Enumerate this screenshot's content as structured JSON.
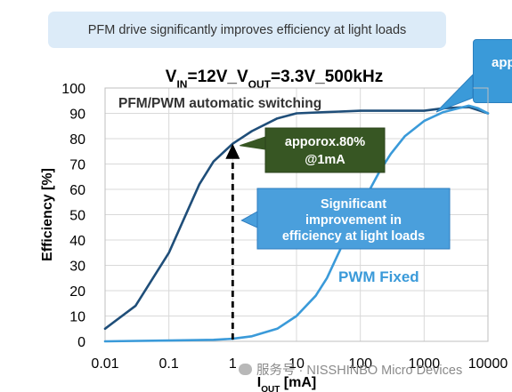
{
  "banner": {
    "text": "PFM drive significantly improves efficiency at light loads"
  },
  "corner_callout": {
    "text": "appro"
  },
  "watermark": {
    "text": "服务号 · NISSHINBO Micro Devices"
  },
  "colors": {
    "dark": "#1f4e79",
    "light": "#3a9ad9",
    "callout_green": "#375623",
    "grid": "#d9d9d9"
  },
  "chart_data": {
    "type": "line",
    "title": {
      "parts": [
        {
          "text": "V",
          "sub": false
        },
        {
          "text": "IN",
          "sub": true
        },
        {
          "text": "=12V_V",
          "sub": false
        },
        {
          "text": "OUT",
          "sub": true
        },
        {
          "text": "=3.3V_500kHz",
          "sub": false
        }
      ]
    },
    "xlabel": {
      "parts": [
        {
          "text": "I",
          "sub": false
        },
        {
          "text": "OUT",
          "sub": true
        },
        {
          "text": " [mA]",
          "sub": false
        }
      ]
    },
    "ylabel": "Efficiency [%]",
    "x_scale": "log",
    "xlim": [
      0.01,
      10000
    ],
    "ylim": [
      0,
      100
    ],
    "x_ticks": [
      {
        "value": 0.01,
        "label": "0.01"
      },
      {
        "value": 0.1,
        "label": "0.1"
      },
      {
        "value": 1,
        "label": "1"
      },
      {
        "value": 10,
        "label": "10"
      },
      {
        "value": 100,
        "label": "100"
      },
      {
        "value": 1000,
        "label": "1000"
      },
      {
        "value": 10000,
        "label": "10000"
      }
    ],
    "y_ticks": [
      {
        "value": 0,
        "label": "0"
      },
      {
        "value": 10,
        "label": "10"
      },
      {
        "value": 20,
        "label": "20"
      },
      {
        "value": 30,
        "label": "30"
      },
      {
        "value": 40,
        "label": "40"
      },
      {
        "value": 50,
        "label": "50"
      },
      {
        "value": 60,
        "label": "60"
      },
      {
        "value": 70,
        "label": "70"
      },
      {
        "value": 80,
        "label": "80"
      },
      {
        "value": 90,
        "label": "90"
      },
      {
        "value": 100,
        "label": "100"
      }
    ],
    "grid": true,
    "series": [
      {
        "name": "PFM/PWM automatic switching",
        "color": "#1f4e79",
        "points": [
          [
            0.01,
            5
          ],
          [
            0.03,
            14
          ],
          [
            0.1,
            35
          ],
          [
            0.2,
            52
          ],
          [
            0.3,
            62
          ],
          [
            0.5,
            71
          ],
          [
            1,
            78
          ],
          [
            2,
            83
          ],
          [
            5,
            88
          ],
          [
            10,
            90
          ],
          [
            30,
            90.5
          ],
          [
            100,
            91
          ],
          [
            300,
            91
          ],
          [
            1000,
            91
          ],
          [
            2000,
            92
          ],
          [
            5000,
            92.5
          ],
          [
            10000,
            90
          ]
        ]
      },
      {
        "name": "PWM Fixed",
        "color": "#3a9ad9",
        "points": [
          [
            0.01,
            0
          ],
          [
            0.1,
            0.3
          ],
          [
            0.5,
            0.6
          ],
          [
            1,
            1
          ],
          [
            2,
            2
          ],
          [
            5,
            5
          ],
          [
            10,
            10
          ],
          [
            20,
            18
          ],
          [
            30,
            25
          ],
          [
            50,
            37
          ],
          [
            100,
            53
          ],
          [
            200,
            67
          ],
          [
            300,
            74
          ],
          [
            500,
            81
          ],
          [
            1000,
            87
          ],
          [
            2000,
            90.5
          ],
          [
            5000,
            93
          ],
          [
            7000,
            92
          ],
          [
            10000,
            90
          ]
        ]
      }
    ],
    "annotations": [
      {
        "id": "approx80",
        "lines": [
          "apporox.80%",
          "@1mA"
        ],
        "x": 1,
        "y": 78
      },
      {
        "id": "improvement",
        "lines": [
          "Significant",
          "improvement in",
          "efficiency at light loads"
        ]
      }
    ]
  }
}
